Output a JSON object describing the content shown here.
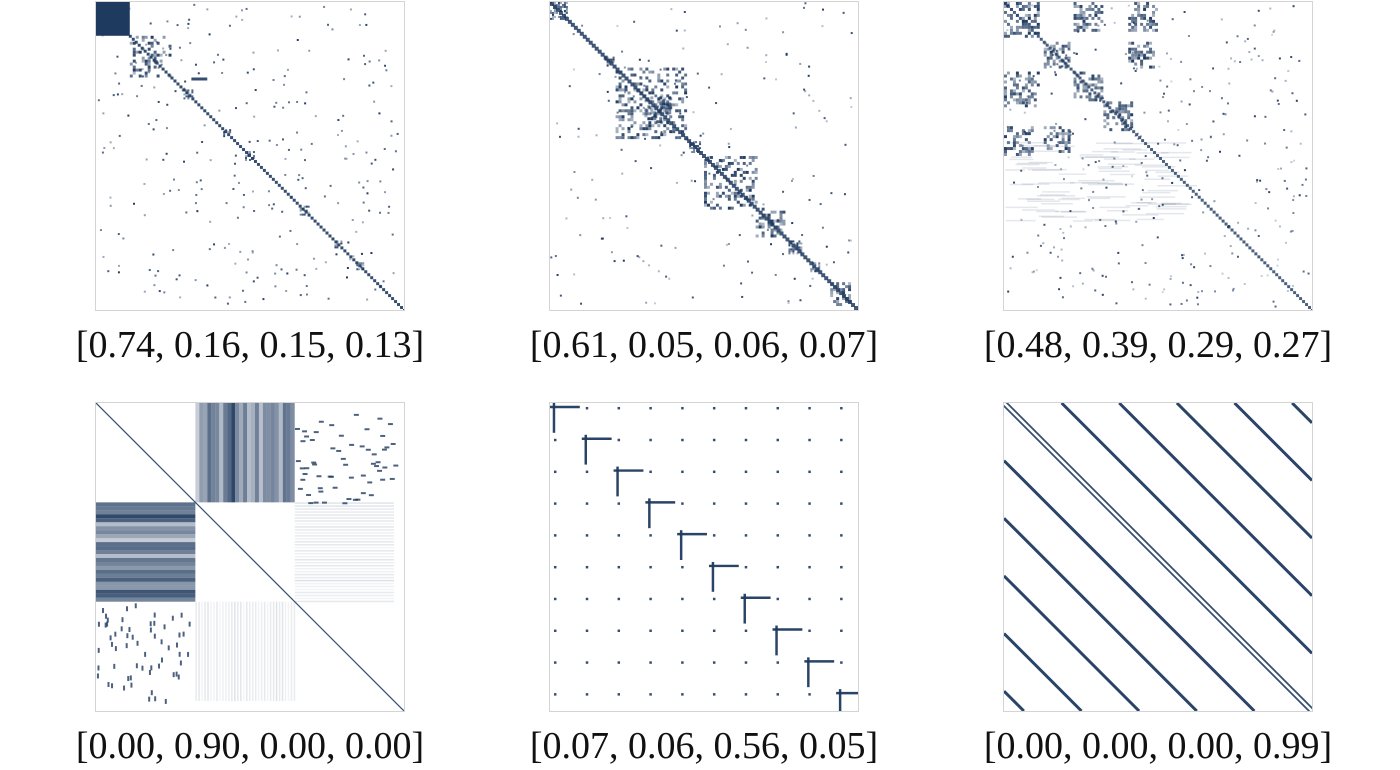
{
  "chart_data": [
    {
      "type": "heatmap",
      "pattern": "diagonal-blocks-sparse",
      "caption": "[0.74, 0.16, 0.15, 0.13]",
      "color": "#1f3a5f"
    },
    {
      "type": "heatmap",
      "pattern": "diagonal-dense-blocks",
      "caption": "[0.61, 0.05, 0.06, 0.07]",
      "color": "#1f3a5f"
    },
    {
      "type": "heatmap",
      "pattern": "hierarchical-blocks",
      "caption": "[0.48, 0.39, 0.29, 0.27]",
      "color": "#1f3a5f"
    },
    {
      "type": "heatmap",
      "pattern": "bipartite-blocks",
      "caption": "[0.00, 0.90, 0.00, 0.00]",
      "color": "#1f3a5f"
    },
    {
      "type": "heatmap",
      "pattern": "grid-crosses",
      "caption": "[0.07, 0.06, 0.56, 0.05]",
      "color": "#1f3a5f"
    },
    {
      "type": "heatmap",
      "pattern": "banded-diagonals",
      "caption": "[0.00, 0.00, 0.00, 0.99]",
      "color": "#1f3a5f"
    }
  ]
}
